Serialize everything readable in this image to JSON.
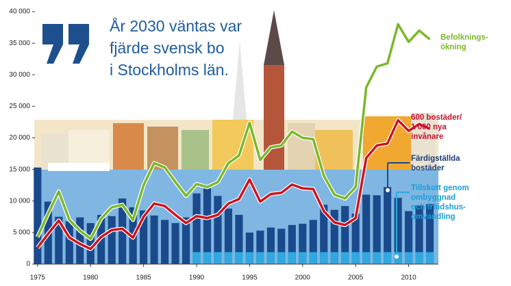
{
  "chart_data": {
    "type": "bar_line",
    "title": [
      "År 2030 väntas var",
      "fjärde svensk bo",
      "i Stockholms län."
    ],
    "x": [
      1975,
      1976,
      1977,
      1978,
      1979,
      1980,
      1981,
      1982,
      1983,
      1984,
      1985,
      1986,
      1987,
      1988,
      1989,
      1990,
      1991,
      1992,
      1993,
      1994,
      1995,
      1996,
      1997,
      1998,
      1999,
      2000,
      2001,
      2002,
      2003,
      2004,
      2005,
      2006,
      2007,
      2008,
      2009,
      2010,
      2011,
      2012
    ],
    "xlim": [
      1974.3,
      2013
    ],
    "xticks": [
      1975,
      1980,
      1985,
      1990,
      1995,
      2000,
      2005,
      2010
    ],
    "ylim": [
      0,
      40000
    ],
    "yticks": [
      0,
      {
        "value": 5000,
        "label": "5 000"
      },
      {
        "value": 10000,
        "label": "10 000"
      },
      {
        "value": 15000,
        "label": "15 000"
      },
      {
        "value": 20000,
        "label": "20 000"
      },
      {
        "value": 25000,
        "label": "25 000"
      },
      {
        "value": 30000,
        "label": "30 000"
      },
      {
        "value": 35000,
        "label": "35 000"
      },
      {
        "value": 40000,
        "label": "40 000"
      }
    ],
    "series": [
      {
        "name": [
          "Färdigställda",
          "bostäder"
        ],
        "kind": "bar",
        "color": "#1b4a8c",
        "values": [
          15300,
          9900,
          7500,
          6800,
          7400,
          6500,
          7800,
          7600,
          10400,
          9000,
          8500,
          7700,
          7000,
          6500,
          7400,
          11200,
          12000,
          10800,
          8800,
          7800,
          5000,
          5300,
          5800,
          5600,
          6200,
          6400,
          7000,
          9400,
          8600,
          9200,
          8000,
          11000,
          10900,
          12200,
          10500,
          8400,
          9300,
          9500
        ]
      },
      {
        "name": [
          "Tillskott genom",
          "ombyggnad",
          "och fritidshus-",
          "omvandling"
        ],
        "kind": "bar",
        "color": "#2fa9e0",
        "values": [
          null,
          null,
          null,
          null,
          null,
          null,
          null,
          null,
          null,
          null,
          null,
          null,
          null,
          null,
          null,
          1900,
          1900,
          1900,
          1900,
          1900,
          1900,
          1900,
          1900,
          1900,
          1900,
          1900,
          1900,
          1900,
          1900,
          1900,
          1900,
          1900,
          1900,
          1900,
          1900,
          1900,
          1900,
          1900
        ]
      },
      {
        "name": [
          "Befolknings-",
          "ökning"
        ],
        "kind": "line",
        "color": "#7ab829",
        "values": [
          4300,
          8000,
          11500,
          7000,
          5300,
          4000,
          7200,
          9000,
          9400,
          7000,
          12500,
          16000,
          15300,
          13000,
          10800,
          12700,
          12200,
          13000,
          16000,
          17200,
          22400,
          16500,
          18500,
          18800,
          21000,
          20000,
          19800,
          14000,
          11000,
          10400,
          12200,
          28000,
          31300,
          31800,
          38000,
          35200,
          37000,
          35600
        ]
      },
      {
        "name": [
          "600 bostäder/",
          "1 000 nya",
          "invånare"
        ],
        "kind": "line",
        "color": "#d0101c",
        "values": [
          2600,
          4800,
          6900,
          4200,
          3200,
          2400,
          4300,
          5400,
          5600,
          4200,
          7500,
          9600,
          9200,
          7800,
          6500,
          7600,
          7300,
          7800,
          9600,
          10300,
          13400,
          9900,
          11100,
          11300,
          12600,
          12000,
          11900,
          8400,
          6600,
          6200,
          7300,
          16800,
          18800,
          19100,
          22800,
          21100,
          22200,
          21400
        ]
      }
    ]
  }
}
